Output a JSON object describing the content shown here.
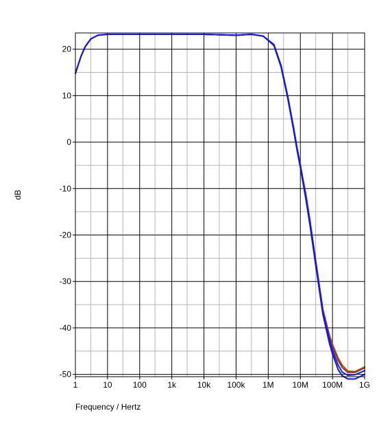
{
  "chart_data": {
    "type": "line",
    "title": "",
    "xlabel": "Frequency / Hertz",
    "ylabel": "dB",
    "xscale": "log",
    "xlim": [
      1,
      1000000000
    ],
    "ylim": [
      -50.5,
      23.5
    ],
    "grid": true,
    "x_ticks": [
      {
        "value": 1,
        "label": "1"
      },
      {
        "value": 10,
        "label": "10"
      },
      {
        "value": 100,
        "label": "100"
      },
      {
        "value": 1000,
        "label": "1k"
      },
      {
        "value": 10000,
        "label": "10k"
      },
      {
        "value": 100000,
        "label": "100k"
      },
      {
        "value": 1000000,
        "label": "1M"
      },
      {
        "value": 10000000,
        "label": "10M"
      },
      {
        "value": 100000000,
        "label": "100M"
      },
      {
        "value": 1000000000,
        "label": "1G"
      }
    ],
    "y_ticks": [
      {
        "value": 20,
        "label": "20"
      },
      {
        "value": 10,
        "label": "10"
      },
      {
        "value": 0,
        "label": "0"
      },
      {
        "value": -10,
        "label": "-10"
      },
      {
        "value": -20,
        "label": "-20"
      },
      {
        "value": -30,
        "label": "-30"
      },
      {
        "value": -40,
        "label": "-40"
      },
      {
        "value": -50,
        "label": "-50"
      }
    ],
    "series": [
      {
        "color": "#5a7a1a",
        "x": [
          1,
          1.5,
          2,
          3,
          5,
          10,
          100,
          1000,
          10000,
          100000,
          300000,
          700000,
          1500000,
          2500000,
          4000000,
          6000000,
          8000000,
          10000000,
          15000000,
          20000000,
          30000000,
          50000000,
          80000000,
          100000000,
          150000000,
          200000000,
          300000000,
          500000000,
          1000000000
        ],
        "y": [
          14.8,
          18.5,
          20.5,
          22.2,
          23,
          23.2,
          23.2,
          23.2,
          23.2,
          23,
          23.2,
          22.8,
          21,
          16.5,
          10,
          3.5,
          -1.5,
          -5,
          -11.5,
          -17,
          -25.5,
          -36,
          -41.5,
          -43.5,
          -46.5,
          -48,
          -49.3,
          -49.4,
          -48.4
        ]
      },
      {
        "color": "#cc2020",
        "x": [
          1,
          1.5,
          2,
          3,
          5,
          10,
          100,
          1000,
          10000,
          100000,
          300000,
          700000,
          1500000,
          2500000,
          4000000,
          6000000,
          8000000,
          10000000,
          15000000,
          20000000,
          30000000,
          50000000,
          80000000,
          100000000,
          150000000,
          200000000,
          300000000,
          500000000,
          1000000000
        ],
        "y": [
          14.8,
          18.5,
          20.5,
          22.2,
          23,
          23.2,
          23.2,
          23.2,
          23.2,
          23,
          23.2,
          22.8,
          21,
          16.5,
          10,
          3.5,
          -1.5,
          -5,
          -11.5,
          -17,
          -25.5,
          -36,
          -41.8,
          -44,
          -47,
          -48.5,
          -49.6,
          -49.6,
          -48.6
        ]
      },
      {
        "color": "#1a2ab0",
        "x": [
          1,
          1.5,
          2,
          3,
          5,
          10,
          100,
          1000,
          10000,
          100000,
          300000,
          700000,
          1500000,
          2500000,
          4000000,
          6000000,
          8000000,
          10000000,
          15000000,
          20000000,
          30000000,
          50000000,
          80000000,
          100000000,
          150000000,
          200000000,
          300000000,
          500000000,
          1000000000
        ],
        "y": [
          14.8,
          18.5,
          20.5,
          22.2,
          23,
          23.2,
          23.2,
          23.2,
          23.2,
          23,
          23.2,
          22.8,
          21,
          16.5,
          10,
          3.5,
          -1.5,
          -5,
          -12,
          -17.5,
          -26,
          -36.5,
          -42.5,
          -44.8,
          -48,
          -49.5,
          -50.2,
          -50.1,
          -49.2
        ]
      },
      {
        "color": "#1010ff",
        "x": [
          1,
          1.5,
          2,
          3,
          5,
          10,
          100,
          1000,
          10000,
          100000,
          300000,
          700000,
          1500000,
          2500000,
          4000000,
          6000000,
          8000000,
          10000000,
          15000000,
          20000000,
          30000000,
          50000000,
          80000000,
          100000000,
          150000000,
          200000000,
          300000000,
          500000000,
          1000000000
        ],
        "y": [
          14.8,
          18.5,
          20.5,
          22.2,
          23,
          23.2,
          23.2,
          23.2,
          23.2,
          23,
          23.2,
          22.8,
          20.8,
          16.2,
          9.6,
          3,
          -2,
          -5.5,
          -12.5,
          -18,
          -26.5,
          -37,
          -43.3,
          -45.6,
          -49,
          -50.3,
          -51,
          -51,
          -50
        ]
      }
    ]
  }
}
